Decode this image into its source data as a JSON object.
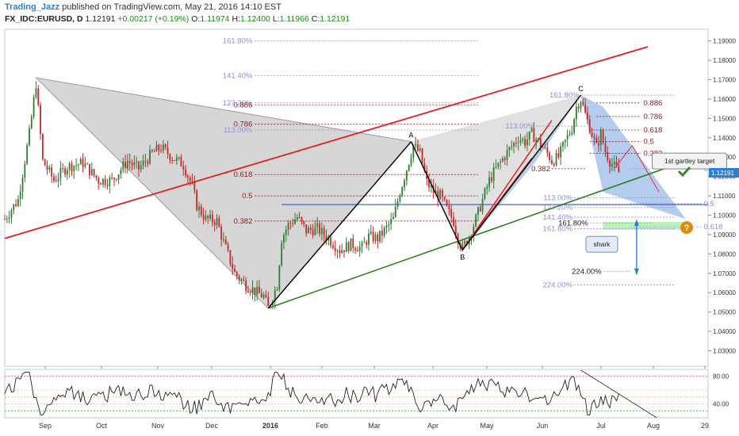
{
  "header": {
    "author": "Trading_Jazz",
    "published": "published on TradingView.com, May 21, 2016 14:10 EST",
    "symbol": "FX_IDC:EURUSD, D",
    "last": "1.12191",
    "change": "+0.00217 (+0.19%)",
    "o_label": "O:",
    "o_value": "1.11974",
    "h_label": "H:",
    "h_value": "1.12400",
    "l_label": "L:",
    "l_value": "1.11966",
    "c_label": "C:",
    "c_value": "1.12191"
  },
  "colors": {
    "up": "#2e7d32",
    "down": "#c62828",
    "channel_top": "#e02020",
    "channel_bottom": "#2e7d1e",
    "fib_dark": "#8b1a1a",
    "fib_light": "#8f8fe0",
    "harmonic_fill": "#9bbcea",
    "grey_fill": "#c8c8c8",
    "level_blue": "#4050c0",
    "target_green": "#b5f0b0",
    "rsi_line": "#222222",
    "price_tag": "#2b7fd6"
  },
  "chart_data": {
    "type": "candlestick",
    "symbol": "FX_IDC:EURUSD",
    "timeframe": "D",
    "last_price_label": "1.12191",
    "ylim": [
      1.022,
      1.196
    ],
    "y_ticks": [
      "1.19000",
      "1.18000",
      "1.17000",
      "1.16000",
      "1.15000",
      "1.14000",
      "1.13000",
      "1.12000",
      "1.11000",
      "1.10000",
      "1.09000",
      "1.08000",
      "1.07000",
      "1.06000",
      "1.05000",
      "1.04000",
      "1.03000"
    ],
    "x_labels": [
      "Sep",
      "Oct",
      "Nov",
      "Dec",
      "2016",
      "Feb",
      "Mar",
      "Apr",
      "May",
      "Jun",
      "Jul",
      "Aug",
      "29"
    ],
    "price_path": [
      [
        0,
        1.098
      ],
      [
        6,
        1.108
      ],
      [
        11,
        1.142
      ],
      [
        14,
        1.168
      ],
      [
        17,
        1.128
      ],
      [
        22,
        1.118
      ],
      [
        28,
        1.125
      ],
      [
        35,
        1.127
      ],
      [
        42,
        1.118
      ],
      [
        48,
        1.118
      ],
      [
        55,
        1.128
      ],
      [
        60,
        1.124
      ],
      [
        66,
        1.132
      ],
      [
        70,
        1.135
      ],
      [
        75,
        1.13
      ],
      [
        80,
        1.126
      ],
      [
        84,
        1.115
      ],
      [
        86,
        1.105
      ],
      [
        90,
        1.098
      ],
      [
        95,
        1.097
      ],
      [
        98,
        1.086
      ],
      [
        103,
        1.07
      ],
      [
        108,
        1.064
      ],
      [
        113,
        1.06
      ],
      [
        116,
        1.058
      ],
      [
        118,
        1.052
      ],
      [
        122,
        1.064
      ],
      [
        124,
        1.088
      ],
      [
        127,
        1.095
      ],
      [
        131,
        1.099
      ],
      [
        135,
        1.092
      ],
      [
        140,
        1.093
      ],
      [
        145,
        1.088
      ],
      [
        150,
        1.082
      ],
      [
        155,
        1.085
      ],
      [
        160,
        1.083
      ],
      [
        163,
        1.089
      ],
      [
        167,
        1.088
      ],
      [
        170,
        1.092
      ],
      [
        174,
        1.098
      ],
      [
        177,
        1.112
      ],
      [
        180,
        1.124
      ],
      [
        183,
        1.136
      ],
      [
        186,
        1.132
      ],
      [
        189,
        1.117
      ],
      [
        192,
        1.112
      ],
      [
        195,
        1.11
      ],
      [
        198,
        1.103
      ],
      [
        201,
        1.097
      ],
      [
        203,
        1.088
      ],
      [
        205,
        1.083
      ],
      [
        208,
        1.089
      ],
      [
        211,
        1.098
      ],
      [
        214,
        1.108
      ],
      [
        217,
        1.118
      ],
      [
        220,
        1.124
      ],
      [
        223,
        1.129
      ],
      [
        226,
        1.134
      ],
      [
        230,
        1.14
      ],
      [
        233,
        1.138
      ],
      [
        236,
        1.142
      ],
      [
        239,
        1.138
      ],
      [
        243,
        1.132
      ],
      [
        245,
        1.128
      ],
      [
        248,
        1.13
      ],
      [
        251,
        1.138
      ],
      [
        254,
        1.145
      ],
      [
        256,
        1.156
      ],
      [
        258,
        1.16
      ],
      [
        260,
        1.152
      ],
      [
        263,
        1.142
      ],
      [
        265,
        1.135
      ],
      [
        267,
        1.142
      ],
      [
        269,
        1.133
      ],
      [
        271,
        1.128
      ],
      [
        273,
        1.125
      ],
      [
        275,
        1.122
      ]
    ],
    "pattern_points": [
      {
        "label": "A",
        "x": 182,
        "y": 1.138
      },
      {
        "label": "B",
        "x": 205,
        "y": 1.082
      },
      {
        "label": "C",
        "x": 258,
        "y": 1.162
      }
    ],
    "fib_left": {
      "levels": [
        {
          "label": "161.80%",
          "y": 1.19
        },
        {
          "label": "141.40%",
          "y": 1.172
        },
        {
          "label": "127.20%",
          "y": 1.158
        },
        {
          "label": "113.00%",
          "y": 1.144
        },
        {
          "label": "0.886",
          "y": 1.157
        },
        {
          "label": "0.786",
          "y": 1.147
        },
        {
          "label": "0.618",
          "y": 1.121
        },
        {
          "label": "0.5",
          "y": 1.11
        },
        {
          "label": "0.382",
          "y": 1.097
        }
      ]
    },
    "fib_right": {
      "levels": [
        {
          "label": "161.80%",
          "y": 1.162
        },
        {
          "label": "113.00%",
          "y": 1.146
        },
        {
          "label": "0.886",
          "y": 1.158
        },
        {
          "label": "0.786",
          "y": 1.151
        },
        {
          "label": "0.618",
          "y": 1.144
        },
        {
          "label": "0.5",
          "y": 1.138
        },
        {
          "label": "0.382",
          "y": 1.132
        },
        {
          "label": "0.382",
          "y": 1.124
        },
        {
          "label": "113.00%",
          "y": 1.109
        },
        {
          "label": "127.20%",
          "y": 1.104
        },
        {
          "label": "141.40%",
          "y": 1.099
        },
        {
          "label": "161.80%",
          "y": 1.096
        },
        {
          "label": "161.80%",
          "y": 1.093
        },
        {
          "label": "224.00%",
          "y": 1.071
        },
        {
          "label": "224.00%",
          "y": 1.064
        },
        {
          "label": "0.382",
          "y": 1.124
        },
        {
          "label": "0.5",
          "y": 1.106
        },
        {
          "label": "0.618",
          "y": 1.094
        }
      ]
    },
    "annotations": [
      {
        "text": "1st gartley target"
      },
      {
        "text": "shark"
      }
    ],
    "rsi": {
      "ylim": [
        20,
        90
      ],
      "ticks": [
        "80.00",
        "40.00"
      ],
      "levels": [
        80,
        60,
        50,
        40,
        30
      ]
    }
  }
}
